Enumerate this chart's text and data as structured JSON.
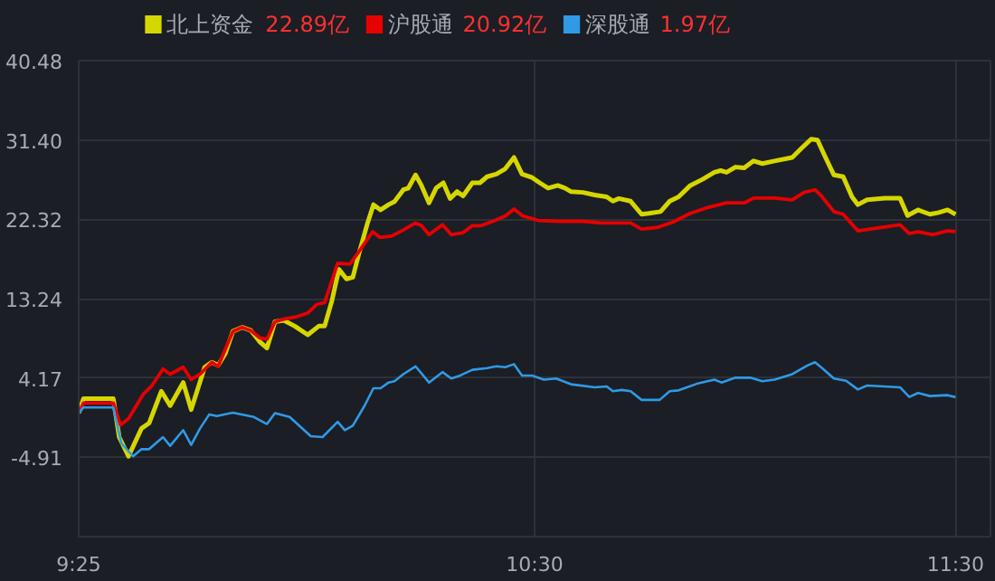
{
  "chart_data": {
    "type": "line",
    "xlim": [
      9.4167,
      11.583
    ],
    "ylim": [
      -13.99,
      40.48
    ],
    "xticks": [
      {
        "value": 9.4167,
        "label": "9:25"
      },
      {
        "value": 10.5,
        "label": "10:30"
      },
      {
        "value": 11.5,
        "label": "11:30"
      }
    ],
    "yticks": [
      {
        "value": -4.91,
        "label": "-4.91"
      },
      {
        "value": 4.17,
        "label": "4.17"
      },
      {
        "value": 13.24,
        "label": "13.24"
      },
      {
        "value": 22.32,
        "label": "22.32"
      },
      {
        "value": 31.4,
        "label": "31.40"
      },
      {
        "value": 40.48,
        "label": "40.48"
      }
    ],
    "grid": true,
    "legend": "top left",
    "annotations": [
      "22.89亿",
      "20.92亿",
      "1.97亿"
    ],
    "series": [
      {
        "name": "北上资金",
        "color": "#d6d600",
        "x": [
          9.417,
          9.428,
          9.499,
          9.513,
          9.535,
          9.566,
          9.584,
          9.613,
          9.634,
          9.665,
          9.684,
          9.716,
          9.733,
          9.748,
          9.765,
          9.783,
          9.805,
          9.826,
          9.847,
          9.864,
          9.883,
          9.904,
          9.93,
          9.961,
          9.987,
          10.001,
          10.018,
          10.035,
          10.053,
          10.068,
          10.082,
          10.103,
          10.117,
          10.134,
          10.153,
          10.167,
          10.188,
          10.2,
          10.217,
          10.231,
          10.249,
          10.266,
          10.283,
          10.299,
          10.316,
          10.33,
          10.352,
          10.37,
          10.387,
          10.409,
          10.43,
          10.451,
          10.47,
          10.494,
          10.512,
          10.532,
          10.555,
          10.572,
          10.586,
          10.615,
          10.643,
          10.671,
          10.686,
          10.7,
          10.728,
          10.754,
          10.771,
          10.799,
          10.821,
          10.842,
          10.87,
          10.899,
          10.927,
          10.942,
          10.956,
          10.977,
          10.998,
          11.02,
          11.041,
          11.07,
          11.112,
          11.133,
          11.157,
          11.172,
          11.19,
          11.211,
          11.233,
          11.254,
          11.268,
          11.29,
          11.332,
          11.368,
          11.386,
          11.411,
          11.439,
          11.46,
          11.481,
          11.5
        ],
        "values": [
          0.14,
          1.8,
          1.8,
          -2.6,
          -4.8,
          -1.6,
          -1.0,
          2.65,
          1.0,
          3.65,
          0.55,
          5.4,
          5.97,
          5.6,
          6.97,
          9.5,
          9.96,
          9.6,
          8.3,
          7.6,
          10.6,
          10.75,
          10.1,
          9.1,
          10.1,
          10.1,
          12.95,
          16.6,
          15.5,
          15.7,
          18.3,
          21.9,
          24.0,
          23.4,
          24.0,
          24.35,
          25.7,
          25.9,
          27.4,
          26.2,
          24.2,
          25.9,
          26.5,
          24.7,
          25.5,
          25.0,
          26.5,
          26.5,
          27.2,
          27.5,
          28.1,
          29.4,
          27.5,
          27.1,
          26.5,
          25.9,
          26.2,
          25.9,
          25.5,
          25.4,
          25.1,
          24.9,
          24.4,
          24.7,
          24.4,
          22.9,
          23.0,
          23.2,
          24.4,
          24.9,
          26.2,
          26.9,
          27.7,
          27.9,
          27.7,
          28.3,
          28.2,
          29.0,
          28.7,
          29.0,
          29.4,
          30.4,
          31.5,
          31.4,
          29.5,
          27.4,
          27.2,
          24.9,
          24.0,
          24.55,
          24.75,
          24.75,
          22.75,
          23.4,
          22.9,
          23.1,
          23.4,
          22.89
        ]
      },
      {
        "name": "沪股通",
        "color": "#e60000",
        "x": [
          9.417,
          9.428,
          9.499,
          9.516,
          9.535,
          9.57,
          9.591,
          9.617,
          9.634,
          9.665,
          9.684,
          9.705,
          9.733,
          9.748,
          9.783,
          9.805,
          9.826,
          9.847,
          9.864,
          9.883,
          9.904,
          9.933,
          9.961,
          9.983,
          10.001,
          10.032,
          10.061,
          10.082,
          10.115,
          10.132,
          10.16,
          10.188,
          10.217,
          10.231,
          10.249,
          10.281,
          10.302,
          10.33,
          10.352,
          10.373,
          10.401,
          10.43,
          10.451,
          10.472,
          10.508,
          10.558,
          10.615,
          10.657,
          10.728,
          10.754,
          10.792,
          10.828,
          10.87,
          10.913,
          10.956,
          10.998,
          11.02,
          11.07,
          11.112,
          11.14,
          11.166,
          11.183,
          11.211,
          11.233,
          11.268,
          11.297,
          11.368,
          11.39,
          11.411,
          11.446,
          11.481,
          11.5
        ],
        "values": [
          0.14,
          1.3,
          1.3,
          -1.2,
          -0.5,
          2.3,
          3.3,
          5.2,
          4.6,
          5.4,
          3.98,
          4.6,
          5.97,
          5.5,
          9.5,
          9.96,
          9.6,
          8.76,
          8.6,
          10.6,
          10.9,
          11.15,
          11.6,
          12.6,
          12.8,
          17.3,
          17.2,
          18.6,
          20.9,
          20.25,
          20.4,
          21.1,
          21.9,
          21.6,
          20.57,
          21.7,
          20.57,
          20.8,
          21.6,
          21.6,
          22.1,
          22.7,
          23.5,
          22.7,
          22.2,
          22.1,
          22.1,
          21.9,
          21.9,
          21.2,
          21.4,
          22.0,
          23.0,
          23.7,
          24.2,
          24.2,
          24.75,
          24.75,
          24.55,
          25.4,
          25.7,
          24.9,
          23.2,
          22.9,
          21.0,
          21.2,
          21.7,
          20.7,
          20.9,
          20.57,
          21.0,
          20.92
        ]
      },
      {
        "name": "深股通",
        "color": "#2f9ae6",
        "x": [
          9.417,
          9.428,
          9.499,
          9.518,
          9.546,
          9.566,
          9.584,
          9.617,
          9.634,
          9.665,
          9.684,
          9.705,
          9.727,
          9.745,
          9.783,
          9.833,
          9.864,
          9.883,
          9.918,
          9.968,
          9.996,
          10.032,
          10.049,
          10.068,
          10.096,
          10.117,
          10.134,
          10.153,
          10.167,
          10.188,
          10.217,
          10.249,
          10.281,
          10.302,
          10.323,
          10.352,
          10.387,
          10.409,
          10.43,
          10.451,
          10.47,
          10.494,
          10.522,
          10.551,
          10.586,
          10.643,
          10.671,
          10.686,
          10.707,
          10.728,
          10.754,
          10.797,
          10.821,
          10.842,
          10.885,
          10.927,
          10.944,
          10.977,
          11.012,
          11.041,
          11.07,
          11.112,
          11.148,
          11.166,
          11.183,
          11.211,
          11.24,
          11.268,
          11.29,
          11.368,
          11.39,
          11.411,
          11.439,
          11.481,
          11.5
        ],
        "values": [
          0.14,
          0.8,
          0.8,
          -3.3,
          -4.8,
          -3.98,
          -3.98,
          -2.6,
          -3.6,
          -1.8,
          -3.5,
          -1.6,
          0.0,
          -0.2,
          0.2,
          -0.3,
          -1.1,
          0.14,
          -0.3,
          -2.5,
          -2.6,
          -0.85,
          -1.8,
          -1.3,
          1.0,
          2.99,
          2.99,
          3.65,
          3.8,
          4.6,
          5.5,
          3.65,
          4.84,
          4.1,
          4.45,
          5.1,
          5.3,
          5.5,
          5.4,
          5.75,
          4.45,
          4.45,
          3.98,
          4.1,
          3.45,
          3.1,
          3.2,
          2.65,
          2.8,
          2.65,
          1.66,
          1.66,
          2.65,
          2.75,
          3.5,
          3.98,
          3.65,
          4.2,
          4.2,
          3.8,
          3.98,
          4.6,
          5.6,
          5.97,
          5.3,
          4.1,
          3.85,
          2.85,
          3.3,
          3.1,
          1.99,
          2.45,
          2.1,
          2.2,
          1.97
        ]
      }
    ]
  }
}
